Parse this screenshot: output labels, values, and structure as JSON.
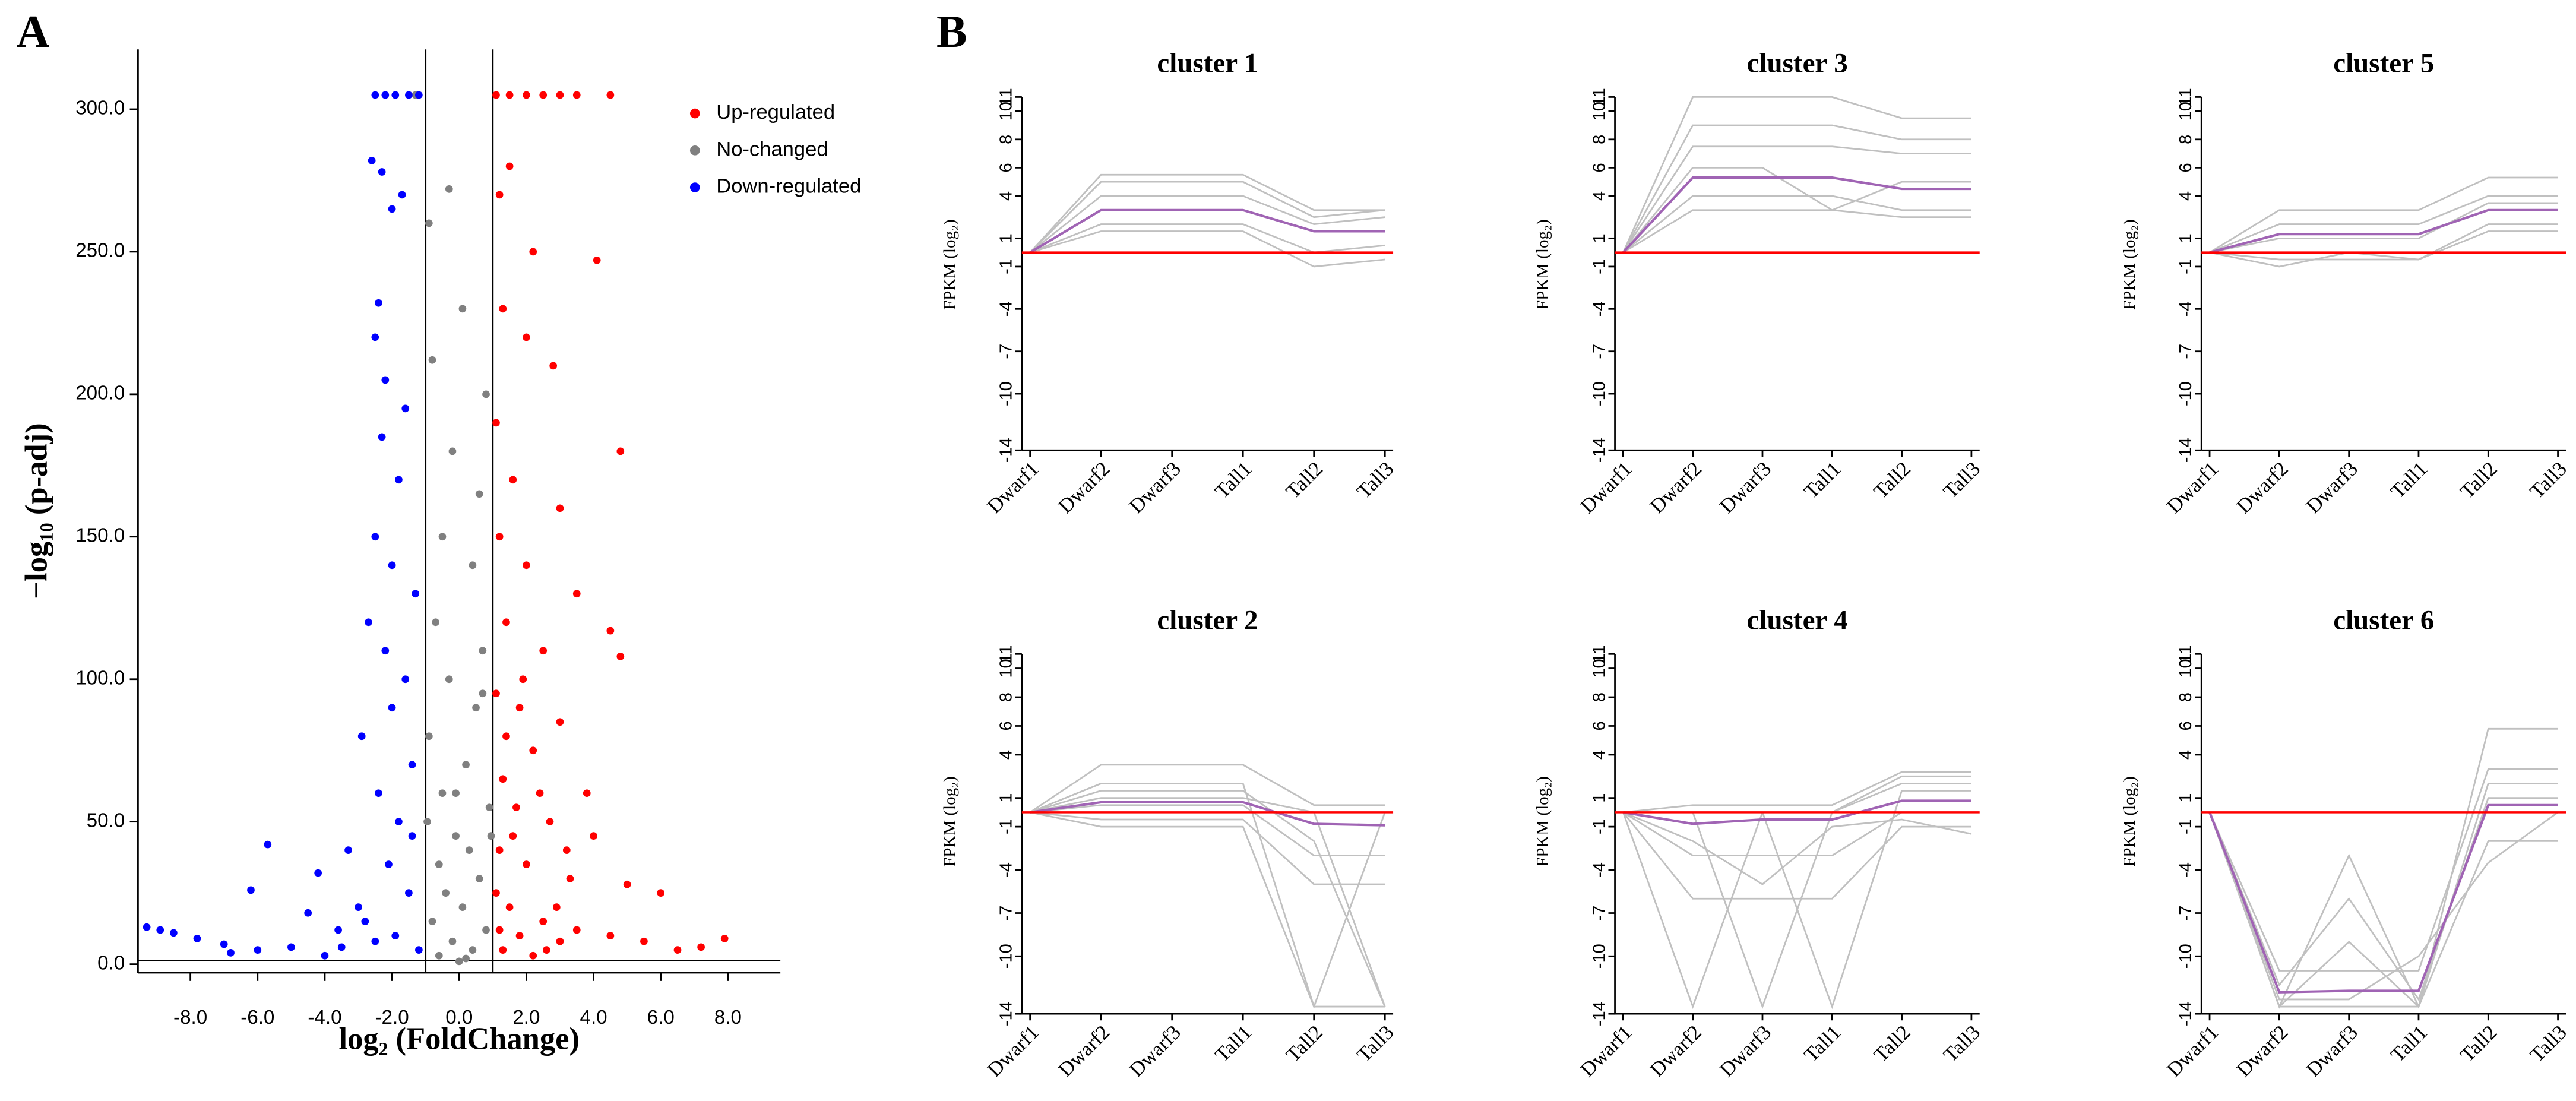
{
  "chart_data": [
    {
      "type": "scatter",
      "panel_label": "A",
      "xlabel": "log₂ (FoldChange)",
      "ylabel": "−log₁₀ (p-adj)",
      "xlim": [
        -9.56,
        9.56
      ],
      "ylim": [
        -3,
        321
      ],
      "xticks": [
        {
          "value": -8,
          "label": "-8.0"
        },
        {
          "value": -6,
          "label": "-6.0"
        },
        {
          "value": -4,
          "label": "-4.0"
        },
        {
          "value": -2,
          "label": "-2.0"
        },
        {
          "value": 0,
          "label": "0.0"
        },
        {
          "value": 2,
          "label": "2.0"
        },
        {
          "value": 4,
          "label": "4.0"
        },
        {
          "value": 6,
          "label": "6.0"
        },
        {
          "value": 8,
          "label": "8.0"
        }
      ],
      "yticks": [
        {
          "value": 0,
          "label": "0.0"
        },
        {
          "value": 50,
          "label": "50.0"
        },
        {
          "value": 100,
          "label": "100.0"
        },
        {
          "value": 150,
          "label": "150.0"
        },
        {
          "value": 200,
          "label": "200.0"
        },
        {
          "value": 250,
          "label": "250.0"
        },
        {
          "value": 300,
          "label": "300.0"
        }
      ],
      "vlines": [
        -1,
        1
      ],
      "hline": 1.3,
      "legend": "upper right",
      "series": [
        {
          "name": "Up-regulated",
          "color": "#ff0000",
          "x": [
            1.1,
            1.5,
            2.0,
            2.5,
            3.0,
            3.5,
            4.5,
            1.2,
            1.5,
            2.2,
            4.1,
            1.3,
            2.0,
            2.8,
            1.1,
            4.8,
            1.6,
            3.0,
            1.2,
            2.0,
            3.5,
            1.4,
            2.5,
            4.5,
            4.8,
            1.1,
            1.8,
            3.0,
            2.2,
            1.3,
            3.8,
            1.7,
            2.7,
            4.0,
            1.2,
            2.0,
            3.3,
            5.0,
            6.0,
            1.5,
            2.5,
            3.5,
            4.5,
            5.5,
            6.5,
            7.2,
            7.9,
            1.3,
            2.2,
            3.0,
            1.8,
            1.1,
            2.6,
            1.6,
            2.4,
            1.9,
            1.4,
            3.2,
            2.9,
            1.2
          ],
          "values": [
            305,
            305,
            305,
            305,
            305,
            305,
            305,
            270,
            280,
            250,
            247,
            230,
            220,
            210,
            190,
            180,
            170,
            160,
            150,
            140,
            130,
            120,
            110,
            117,
            108,
            95,
            90,
            85,
            75,
            65,
            60,
            55,
            50,
            45,
            40,
            35,
            30,
            28,
            25,
            20,
            15,
            12,
            10,
            8,
            5,
            6,
            9,
            5,
            3,
            8,
            10,
            25,
            5,
            45,
            60,
            100,
            80,
            40,
            20,
            12
          ]
        },
        {
          "name": "No-changed",
          "color": "#808080",
          "x": [
            -1.3,
            -0.3,
            -0.9,
            -0.2,
            0.1,
            -0.8,
            0.8,
            0.6,
            -0.5,
            0.4,
            -0.7,
            0.7,
            -0.3,
            0.5,
            -0.9,
            0.2,
            -0.5,
            0.9,
            -0.1,
            0.3,
            -0.6,
            0.6,
            -0.4,
            0.1,
            -0.8,
            0.8,
            -0.2,
            0.4,
            -0.6,
            0.2,
            0,
            -0.95,
            0.95,
            -0.1,
            0.7
          ],
          "values": [
            305,
            272,
            260,
            180,
            230,
            212,
            200,
            165,
            150,
            140,
            120,
            110,
            100,
            90,
            80,
            70,
            60,
            55,
            45,
            40,
            35,
            30,
            25,
            20,
            15,
            12,
            8,
            5,
            3,
            2,
            1,
            50,
            45,
            60,
            95
          ]
        },
        {
          "name": "Down-regulated",
          "color": "#0000ff",
          "x": [
            -2.5,
            -2.2,
            -1.9,
            -1.5,
            -1.2,
            -2.6,
            -2.3,
            -1.7,
            -2.0,
            -2.4,
            -2.5,
            -2.2,
            -1.6,
            -2.3,
            -1.8,
            -2.5,
            -2.0,
            -1.3,
            -2.7,
            -2.2,
            -1.6,
            -2.0,
            -2.9,
            -1.4,
            -2.4,
            -1.8,
            -3.3,
            -2.1,
            -4.2,
            -1.5,
            -3.0,
            -5.7,
            -6.2,
            -4.5,
            -3.6,
            -2.5,
            -5.0,
            -6.0,
            -7.0,
            -7.8,
            -8.5,
            -9.3,
            -8.9,
            -6.8,
            -4.0,
            -1.2,
            -2.8,
            -1.9,
            -3.5,
            -1.4
          ],
          "values": [
            305,
            305,
            305,
            305,
            305,
            282,
            278,
            270,
            265,
            232,
            220,
            205,
            195,
            185,
            170,
            150,
            140,
            130,
            120,
            110,
            100,
            90,
            80,
            70,
            60,
            50,
            40,
            35,
            32,
            25,
            20,
            42,
            26,
            18,
            12,
            8,
            6,
            5,
            7,
            9,
            11,
            13,
            12,
            4,
            3,
            5,
            15,
            10,
            6,
            45
          ]
        }
      ]
    },
    {
      "type": "line",
      "panel_label": "B",
      "title": "cluster 1",
      "ylabel": "FPKM (log₂)",
      "categories": [
        "Dwarf1",
        "Dwarf2",
        "Dwarf3",
        "Tall1",
        "Tall2",
        "Tall3"
      ],
      "ylim": [
        -14,
        11
      ],
      "yticks": [
        11,
        10,
        8,
        6,
        4,
        1,
        -1,
        -4,
        -7,
        -10,
        -14
      ],
      "hline": 0,
      "hline_color": "#ff0000",
      "series": [
        {
          "color": "#c0c0c0",
          "values": [
            0,
            5.5,
            5.5,
            5.5,
            3,
            3
          ]
        },
        {
          "color": "#c0c0c0",
          "values": [
            0,
            1.5,
            1.5,
            1.5,
            -1,
            -0.5
          ]
        },
        {
          "color": "#c0c0c0",
          "values": [
            0,
            4,
            4,
            4,
            2,
            2.5
          ]
        },
        {
          "color": "#c0c0c0",
          "values": [
            0,
            2,
            2,
            2,
            0,
            0.5
          ]
        },
        {
          "color": "#c0c0c0",
          "values": [
            0,
            5,
            5,
            5,
            2.5,
            3
          ]
        },
        {
          "color": "#a064b4",
          "values": [
            0,
            3,
            3,
            3,
            1.5,
            1.5
          ]
        }
      ]
    },
    {
      "type": "line",
      "title": "cluster 3",
      "ylabel": "FPKM (log₂)",
      "categories": [
        "Dwarf1",
        "Dwarf2",
        "Dwarf3",
        "Tall1",
        "Tall2",
        "Tall3"
      ],
      "ylim": [
        -14,
        11
      ],
      "yticks": [
        11,
        10,
        8,
        6,
        4,
        1,
        -1,
        -4,
        -7,
        -10,
        -14
      ],
      "hline": 0,
      "hline_color": "#ff0000",
      "series": [
        {
          "color": "#c0c0c0",
          "values": [
            0,
            11,
            11,
            11,
            9.5,
            9.5
          ]
        },
        {
          "color": "#c0c0c0",
          "values": [
            0,
            3,
            3,
            3,
            2.5,
            2.5
          ]
        },
        {
          "color": "#c0c0c0",
          "values": [
            0,
            9,
            9,
            9,
            8,
            8
          ]
        },
        {
          "color": "#c0c0c0",
          "values": [
            0,
            6,
            6,
            3,
            5,
            5
          ]
        },
        {
          "color": "#c0c0c0",
          "values": [
            0,
            7.5,
            7.5,
            7.5,
            7,
            7
          ]
        },
        {
          "color": "#c0c0c0",
          "values": [
            0,
            4,
            4,
            4,
            3,
            3
          ]
        },
        {
          "color": "#a064b4",
          "values": [
            0,
            5.3,
            5.3,
            5.3,
            4.5,
            4.5
          ]
        }
      ]
    },
    {
      "type": "line",
      "title": "cluster 5",
      "ylabel": "FPKM (log₂)",
      "categories": [
        "Dwarf1",
        "Dwarf2",
        "Dwarf3",
        "Tall1",
        "Tall2",
        "Tall3"
      ],
      "ylim": [
        -14,
        11
      ],
      "yticks": [
        11,
        10,
        8,
        6,
        4,
        1,
        -1,
        -4,
        -7,
        -10,
        -14
      ],
      "hline": 0,
      "hline_color": "#ff0000",
      "series": [
        {
          "color": "#c0c0c0",
          "values": [
            0,
            3,
            3,
            3,
            5.3,
            5.3
          ]
        },
        {
          "color": "#c0c0c0",
          "values": [
            0,
            -0.5,
            -0.5,
            -0.5,
            1.5,
            1.5
          ]
        },
        {
          "color": "#c0c0c0",
          "values": [
            0,
            2,
            2,
            2,
            4,
            4
          ]
        },
        {
          "color": "#c0c0c0",
          "values": [
            0,
            -1,
            0,
            -0.5,
            2,
            2
          ]
        },
        {
          "color": "#c0c0c0",
          "values": [
            0,
            1,
            1,
            1,
            3.5,
            3.5
          ]
        },
        {
          "color": "#a064b4",
          "values": [
            0,
            1.3,
            1.3,
            1.3,
            3,
            3
          ]
        }
      ]
    },
    {
      "type": "line",
      "title": "cluster 2",
      "ylabel": "FPKM (log₂)",
      "categories": [
        "Dwarf1",
        "Dwarf2",
        "Dwarf3",
        "Tall1",
        "Tall2",
        "Tall3"
      ],
      "ylim": [
        -14,
        11
      ],
      "yticks": [
        11,
        10,
        8,
        6,
        4,
        1,
        -1,
        -4,
        -7,
        -10,
        -14
      ],
      "hline": 0,
      "hline_color": "#ff0000",
      "series": [
        {
          "color": "#c0c0c0",
          "values": [
            0,
            3.3,
            3.3,
            3.3,
            0.5,
            0.5
          ]
        },
        {
          "color": "#c0c0c0",
          "values": [
            0,
            -1,
            -1,
            -1,
            -13.5,
            -13.5
          ]
        },
        {
          "color": "#c0c0c0",
          "values": [
            0,
            2,
            2,
            2,
            -13.5,
            0
          ]
        },
        {
          "color": "#c0c0c0",
          "values": [
            0,
            1,
            1,
            1,
            0,
            -13.5
          ]
        },
        {
          "color": "#c0c0c0",
          "values": [
            0,
            0.5,
            0.5,
            0.5,
            -3,
            -3
          ]
        },
        {
          "color": "#c0c0c0",
          "values": [
            0,
            -0.5,
            -0.5,
            -0.5,
            -5,
            -5
          ]
        },
        {
          "color": "#c0c0c0",
          "values": [
            0,
            1.5,
            1.5,
            1.5,
            -2,
            -13.5
          ]
        },
        {
          "color": "#a064b4",
          "values": [
            0,
            0.7,
            0.7,
            0.7,
            -0.8,
            -0.9
          ]
        }
      ]
    },
    {
      "type": "line",
      "title": "cluster 4",
      "ylabel": "FPKM (log₂)",
      "categories": [
        "Dwarf1",
        "Dwarf2",
        "Dwarf3",
        "Tall1",
        "Tall2",
        "Tall3"
      ],
      "ylim": [
        -14,
        11
      ],
      "yticks": [
        11,
        10,
        8,
        6,
        4,
        1,
        -1,
        -4,
        -7,
        -10,
        -14
      ],
      "hline": 0,
      "hline_color": "#ff0000",
      "series": [
        {
          "color": "#c0c0c0",
          "values": [
            0,
            -13.5,
            0,
            0,
            2.5,
            2.5
          ]
        },
        {
          "color": "#c0c0c0",
          "values": [
            0,
            0,
            -13.5,
            0,
            2,
            2
          ]
        },
        {
          "color": "#c0c0c0",
          "values": [
            0,
            0,
            0,
            -13.5,
            1.5,
            1.5
          ]
        },
        {
          "color": "#c0c0c0",
          "values": [
            0,
            -3,
            -3,
            -3,
            0,
            0
          ]
        },
        {
          "color": "#c0c0c0",
          "values": [
            0,
            0.5,
            0.5,
            0.5,
            2.8,
            2.8
          ]
        },
        {
          "color": "#c0c0c0",
          "values": [
            0,
            -6,
            -6,
            -6,
            -1,
            -1
          ]
        },
        {
          "color": "#c0c0c0",
          "values": [
            0,
            -2,
            -5,
            -1,
            -0.5,
            -1.5
          ]
        },
        {
          "color": "#a064b4",
          "values": [
            0,
            -0.8,
            -0.5,
            -0.5,
            0.8,
            0.8
          ]
        }
      ]
    },
    {
      "type": "line",
      "title": "cluster 6",
      "ylabel": "FPKM (log₂)",
      "categories": [
        "Dwarf1",
        "Dwarf2",
        "Dwarf3",
        "Tall1",
        "Tall2",
        "Tall3"
      ],
      "ylim": [
        -14,
        11
      ],
      "yticks": [
        11,
        10,
        8,
        6,
        4,
        1,
        -1,
        -4,
        -7,
        -10,
        -14
      ],
      "hline": 0,
      "hline_color": "#ff0000",
      "series": [
        {
          "color": "#c0c0c0",
          "values": [
            0,
            -13.5,
            -3,
            -13.5,
            5.8,
            5.8
          ]
        },
        {
          "color": "#c0c0c0",
          "values": [
            0,
            -13.5,
            -13.5,
            -13.5,
            -2,
            -2
          ]
        },
        {
          "color": "#c0c0c0",
          "values": [
            0,
            -11,
            -11,
            -11,
            3,
            3
          ]
        },
        {
          "color": "#c0c0c0",
          "values": [
            0,
            -12,
            -6,
            -13,
            1,
            1
          ]
        },
        {
          "color": "#c0c0c0",
          "values": [
            0,
            -13,
            -13,
            -10,
            -3.5,
            0
          ]
        },
        {
          "color": "#c0c0c0",
          "values": [
            0,
            -13.5,
            -9,
            -13.5,
            2,
            2
          ]
        },
        {
          "color": "#a064b4",
          "values": [
            0,
            -12.5,
            -12.4,
            -12.4,
            0.5,
            0.5
          ]
        }
      ]
    }
  ]
}
